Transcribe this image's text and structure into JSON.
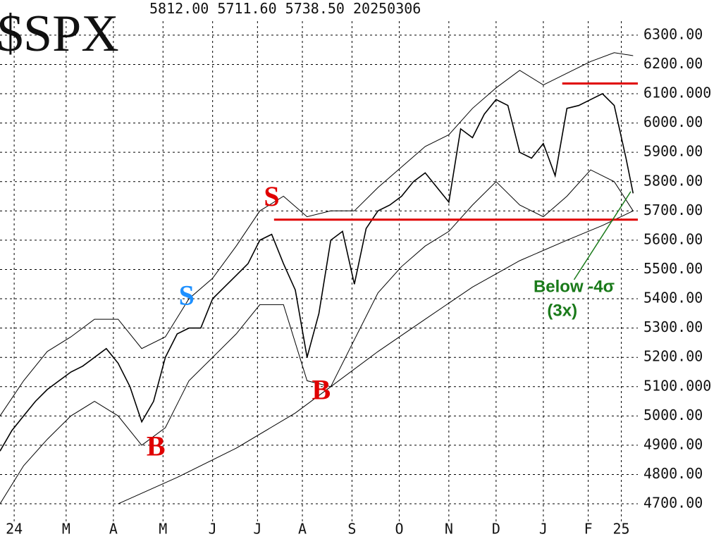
{
  "chart_data": {
    "type": "line",
    "title": "$SPX",
    "subtitle": "5812.00 5711.60 5738.50    20250306",
    "xlim": [
      0,
      270
    ],
    "ylim": [
      4640,
      6420
    ],
    "grid": true,
    "xticks": [
      {
        "value": 6,
        "label": "24"
      },
      {
        "value": 28,
        "label": "M"
      },
      {
        "value": 48,
        "label": "A"
      },
      {
        "value": 69,
        "label": "M"
      },
      {
        "value": 90,
        "label": "J"
      },
      {
        "value": 109,
        "label": "J"
      },
      {
        "value": 128,
        "label": "A"
      },
      {
        "value": 149,
        "label": "S"
      },
      {
        "value": 169,
        "label": "O"
      },
      {
        "value": 190,
        "label": "N"
      },
      {
        "value": 210,
        "label": "D"
      },
      {
        "value": 230,
        "label": "J"
      },
      {
        "value": 249,
        "label": "F"
      },
      {
        "value": 263,
        "label": "25"
      }
    ],
    "yticks": [
      {
        "value": 4700,
        "label": "4700.00"
      },
      {
        "value": 4800,
        "label": "4800.00"
      },
      {
        "value": 4900,
        "label": "4900.00"
      },
      {
        "value": 5000,
        "label": "5000.00"
      },
      {
        "value": 5100,
        "label": "5100.000"
      },
      {
        "value": 5200,
        "label": "5200.00"
      },
      {
        "value": 5300,
        "label": "5300.00"
      },
      {
        "value": 5400,
        "label": "5400.00"
      },
      {
        "value": 5500,
        "label": "5500.00"
      },
      {
        "value": 5600,
        "label": "5600.00"
      },
      {
        "value": 5700,
        "label": "5700.00"
      },
      {
        "value": 5800,
        "label": "5800.00"
      },
      {
        "value": 5900,
        "label": "5900.00"
      },
      {
        "value": 6000,
        "label": "6000.00"
      },
      {
        "value": 6100,
        "label": "6100.000"
      },
      {
        "value": 6200,
        "label": "6200.00"
      },
      {
        "value": 6300,
        "label": "6300.00"
      }
    ],
    "series": [
      {
        "color": "#000000",
        "x": [
          0,
          5,
          10,
          15,
          20,
          25,
          30,
          35,
          40,
          45,
          50,
          55,
          60,
          65,
          70,
          75,
          80,
          85,
          90,
          95,
          100,
          105,
          110,
          115,
          120,
          125,
          130,
          135,
          140,
          145,
          150,
          155,
          160,
          165,
          170,
          175,
          180,
          185,
          190,
          195,
          200,
          205,
          210,
          215,
          220,
          225,
          230,
          235,
          240,
          245,
          250,
          255,
          260,
          265,
          268
        ],
        "values": [
          4880,
          4950,
          5000,
          5050,
          5090,
          5120,
          5150,
          5170,
          5200,
          5230,
          5180,
          5100,
          4980,
          5050,
          5200,
          5280,
          5300,
          5300,
          5400,
          5440,
          5480,
          5520,
          5600,
          5620,
          5520,
          5430,
          5200,
          5350,
          5600,
          5630,
          5450,
          5640,
          5700,
          5720,
          5750,
          5800,
          5830,
          5780,
          5730,
          5980,
          5950,
          6030,
          6080,
          6060,
          5900,
          5880,
          5930,
          5820,
          6050,
          6060,
          6080,
          6100,
          6060,
          5880,
          5760
        ]
      },
      {
        "color": "#000000",
        "x": [
          50,
          75,
          100,
          125,
          140,
          160,
          180,
          200,
          220,
          240,
          255,
          268
        ],
        "values": [
          4700,
          4790,
          4890,
          5010,
          5100,
          5220,
          5330,
          5440,
          5530,
          5600,
          5650,
          5700
        ]
      },
      {
        "color": "#000000",
        "x": [
          0,
          10,
          20,
          30,
          40,
          50,
          60,
          70,
          80,
          90,
          100,
          110,
          120,
          130,
          140,
          150,
          160,
          170,
          180,
          190,
          200,
          210,
          220,
          230,
          240,
          250,
          260,
          268
        ],
        "values": [
          5000,
          5120,
          5220,
          5270,
          5330,
          5330,
          5230,
          5270,
          5400,
          5470,
          5580,
          5700,
          5750,
          5680,
          5700,
          5700,
          5780,
          5850,
          5920,
          5960,
          6050,
          6120,
          6180,
          6130,
          6170,
          6210,
          6240,
          6230
        ]
      },
      {
        "color": "#000000",
        "x": [
          0,
          10,
          20,
          30,
          40,
          50,
          60,
          70,
          80,
          90,
          100,
          110,
          120,
          130,
          140,
          150,
          160,
          170,
          180,
          190,
          200,
          210,
          220,
          230,
          240,
          250,
          260,
          268
        ],
        "values": [
          4700,
          4830,
          4920,
          5000,
          5050,
          5000,
          4900,
          4960,
          5120,
          5200,
          5280,
          5380,
          5380,
          5120,
          5100,
          5260,
          5420,
          5510,
          5580,
          5630,
          5720,
          5800,
          5720,
          5680,
          5750,
          5840,
          5800,
          5700
        ]
      }
    ],
    "levels": [
      {
        "value": 5670,
        "x": [
          116,
          270
        ],
        "color": "#e00000"
      },
      {
        "value": 6135,
        "x": [
          238,
          270
        ],
        "color": "#e00000"
      }
    ],
    "annotations": [
      {
        "text": "S",
        "x": 115,
        "y": 5740,
        "color": "#e00000",
        "style": "serif"
      },
      {
        "text": "S",
        "x": 79,
        "y": 5402,
        "color": "#1e90ff",
        "style": "serif"
      },
      {
        "text": "B",
        "x": 66,
        "y": 4887,
        "color": "#e00000",
        "style": "serif"
      },
      {
        "text": "B",
        "x": 136,
        "y": 5080,
        "color": "#e00000",
        "style": "serif"
      },
      {
        "text": "Below -4σ",
        "x": 243,
        "y": 5438,
        "color": "#1a7a1a",
        "style": "sans"
      },
      {
        "text": "(3x)",
        "x": 238,
        "y": 5356,
        "color": "#1a7a1a",
        "style": "sans"
      }
    ],
    "pointer": {
      "x": [
        243,
        267
      ],
      "y": [
        5465,
        5766
      ],
      "color": "#1a7a1a"
    }
  }
}
